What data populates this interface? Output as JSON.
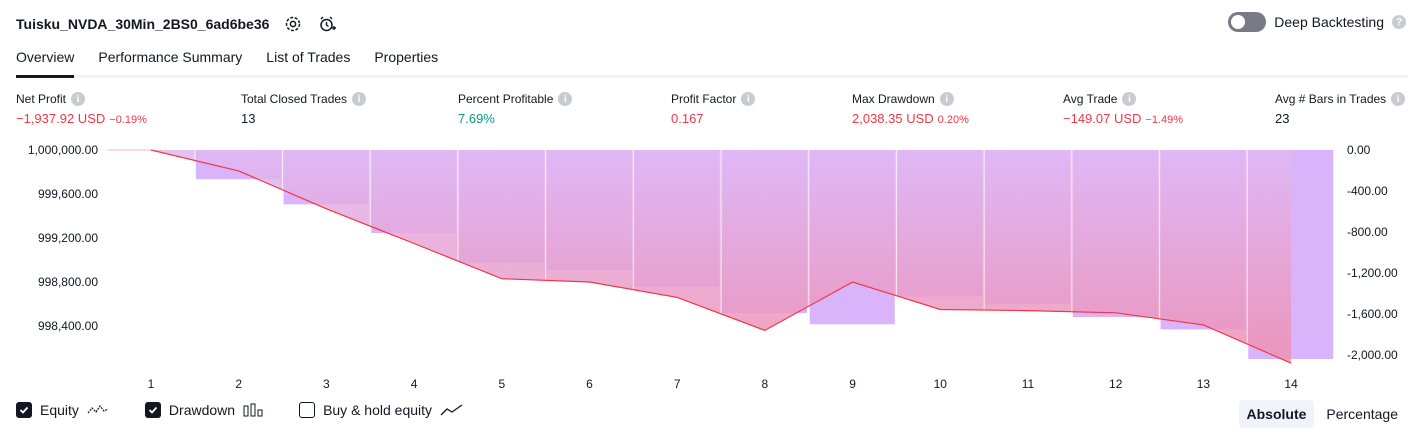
{
  "header": {
    "title": "Tuisku_NVDA_30Min_2BS0_6ad6be36",
    "deep_label": "Deep Backtesting",
    "deep_enabled": false
  },
  "tabs": [
    {
      "label": "Overview",
      "active": true
    },
    {
      "label": "Performance Summary",
      "active": false
    },
    {
      "label": "List of Trades",
      "active": false
    },
    {
      "label": "Properties",
      "active": false
    }
  ],
  "metrics": [
    {
      "label": "Net Profit",
      "value": "−1,937.92 USD",
      "pct": "−0.19%",
      "color": "red"
    },
    {
      "label": "Total Closed Trades",
      "value": "13",
      "pct": "",
      "color": "neutral"
    },
    {
      "label": "Percent Profitable",
      "value": "7.69%",
      "pct": "",
      "color": "green"
    },
    {
      "label": "Profit Factor",
      "value": "0.167",
      "pct": "",
      "color": "red"
    },
    {
      "label": "Max Drawdown",
      "value": "2,038.35 USD",
      "pct": "0.20%",
      "color": "red"
    },
    {
      "label": "Avg Trade",
      "value": "−149.07 USD",
      "pct": "−1.49%",
      "color": "red"
    },
    {
      "label": "Avg # Bars in Trades",
      "value": "23",
      "pct": "",
      "color": "neutral"
    }
  ],
  "chart_data": {
    "type": "bar",
    "categories": [
      "1",
      "2",
      "3",
      "4",
      "5",
      "6",
      "7",
      "8",
      "9",
      "10",
      "11",
      "12",
      "13",
      "14"
    ],
    "left_axis": {
      "ticks": [
        "1,000,000.00",
        "999,600.00",
        "999,200.00",
        "998,800.00",
        "998,400.00"
      ],
      "values": [
        1000000,
        999600,
        999200,
        998800,
        998400
      ],
      "range": [
        998100,
        1000000
      ]
    },
    "right_axis": {
      "ticks": [
        "0.00",
        "-400.00",
        "-800.00",
        "-1,200.00",
        "-1,600.00",
        "-2,000.00"
      ],
      "values": [
        0,
        -400,
        -800,
        -1200,
        -1600,
        -2000
      ],
      "range": [
        -2038.35,
        0
      ]
    },
    "series": [
      {
        "name": "Equity",
        "values": [
          1000000,
          999810,
          999465,
          999150,
          998830,
          998800,
          998660,
          998360,
          998800,
          998550,
          998540,
          998520,
          998410,
          998062
        ]
      },
      {
        "name": "Drawdown",
        "values": [
          0,
          -285,
          -530,
          -810,
          -1100,
          -1170,
          -1330,
          -1590,
          -1700,
          -1430,
          -1500,
          -1630,
          -1750,
          -2038.35
        ]
      }
    ],
    "colors": {
      "equity_line": "#f23645",
      "drawdown_bar": "#d9b4fb",
      "equity_fill_top": "#e0b8f5",
      "equity_fill_bottom": "#ee8fb0",
      "loss_fill": "#fcc7c5"
    }
  },
  "legend": [
    {
      "label": "Equity",
      "checked": true,
      "icon": "equity-wave-icon"
    },
    {
      "label": "Drawdown",
      "checked": true,
      "icon": "drawdown-bars-icon"
    },
    {
      "label": "Buy & hold equity",
      "checked": false,
      "icon": "buyhold-line-icon"
    }
  ],
  "modes": [
    {
      "label": "Absolute",
      "active": true
    },
    {
      "label": "Percentage",
      "active": false
    }
  ]
}
